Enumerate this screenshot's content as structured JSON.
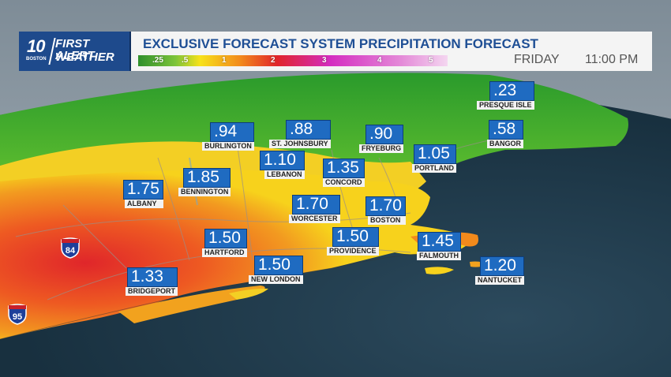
{
  "brand": {
    "logo_number": "10",
    "logo_city": "BOSTON",
    "logo_line1": "FIRST ALERT",
    "logo_line2": "WEATHER"
  },
  "header": {
    "title": "EXCLUSIVE FORECAST SYSTEM PRECIPITATION FORECAST",
    "day": "FRIDAY",
    "time": "11:00 PM"
  },
  "legend": {
    "labels": [
      ".25",
      ".5",
      "1",
      "2",
      "3",
      "4",
      "5"
    ],
    "colors": {
      "green": "#3fae2a",
      "yellow": "#f7e21a",
      "orange": "#f28a1c",
      "red": "#e0242a",
      "magenta": "#d42cc0",
      "pink": "#e48ad8"
    }
  },
  "markers": [
    {
      "value": ".23",
      "name": "PRESQUE ISLE"
    },
    {
      "value": ".94",
      "name": "BURLINGTON"
    },
    {
      "value": ".88",
      "name": "ST. JOHNSBURY"
    },
    {
      "value": ".90",
      "name": "FRYEBURG"
    },
    {
      "value": ".58",
      "name": "BANGOR"
    },
    {
      "value": "1.10",
      "name": "LEBANON"
    },
    {
      "value": "1.05",
      "name": "PORTLAND"
    },
    {
      "value": "1.85",
      "name": "BENNINGTON"
    },
    {
      "value": "1.35",
      "name": "CONCORD"
    },
    {
      "value": "1.75",
      "name": "ALBANY"
    },
    {
      "value": "1.70",
      "name": "WORCESTER"
    },
    {
      "value": "1.70",
      "name": "BOSTON"
    },
    {
      "value": "1.50",
      "name": "HARTFORD"
    },
    {
      "value": "1.50",
      "name": "PROVIDENCE"
    },
    {
      "value": "1.45",
      "name": "FALMOUTH"
    },
    {
      "value": "1.50",
      "name": "NEW LONDON"
    },
    {
      "value": "1.33",
      "name": "BRIDGEPORT"
    },
    {
      "value": "1.20",
      "name": "NANTUCKET"
    }
  ],
  "highways": [
    {
      "label": "84"
    },
    {
      "label": "95"
    }
  ]
}
